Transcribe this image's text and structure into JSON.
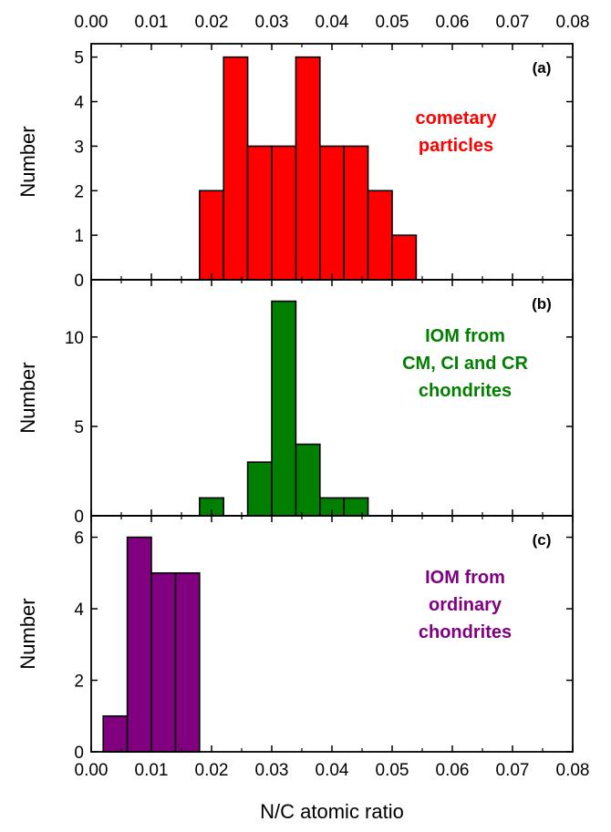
{
  "colors": {
    "axis": "#000000",
    "panel_a": "#ff0000",
    "panel_b": "#007f00",
    "panel_c": "#800080"
  },
  "chart_data": {
    "type": "bar",
    "xlabel": "N/C atomic ratio",
    "xlim": [
      0,
      0.08
    ],
    "bin_width": 0.004,
    "x_ticks": [
      "0.00",
      "0.01",
      "0.02",
      "0.03",
      "0.04",
      "0.05",
      "0.06",
      "0.07",
      "0.08"
    ],
    "panels": [
      {
        "id": "a",
        "letter": "(a)",
        "ylabel": "Number",
        "annotation": [
          "cometary",
          "particles"
        ],
        "color": "#ff0000",
        "ylim": [
          0,
          5.3
        ],
        "y_ticks": [
          0,
          1,
          2,
          3,
          4,
          5
        ],
        "bins": [
          {
            "x": 0.018,
            "value": 2
          },
          {
            "x": 0.022,
            "value": 5
          },
          {
            "x": 0.026,
            "value": 3
          },
          {
            "x": 0.03,
            "value": 3
          },
          {
            "x": 0.034,
            "value": 5
          },
          {
            "x": 0.038,
            "value": 3
          },
          {
            "x": 0.042,
            "value": 3
          },
          {
            "x": 0.046,
            "value": 2
          },
          {
            "x": 0.05,
            "value": 1
          }
        ]
      },
      {
        "id": "b",
        "letter": "(b)",
        "ylabel": "Number",
        "annotation": [
          "IOM from",
          "CM, CI and CR",
          "chondrites"
        ],
        "color": "#007f00",
        "ylim": [
          0,
          13.2
        ],
        "y_ticks": [
          0,
          5,
          10
        ],
        "bins": [
          {
            "x": 0.018,
            "value": 1
          },
          {
            "x": 0.026,
            "value": 3
          },
          {
            "x": 0.03,
            "value": 12
          },
          {
            "x": 0.034,
            "value": 4
          },
          {
            "x": 0.038,
            "value": 1
          },
          {
            "x": 0.042,
            "value": 1
          }
        ]
      },
      {
        "id": "c",
        "letter": "(c)",
        "ylabel": "Number",
        "annotation": [
          "IOM from",
          "ordinary",
          "chondrites"
        ],
        "color": "#800080",
        "ylim": [
          0,
          6.6
        ],
        "y_ticks": [
          0,
          2,
          4,
          6
        ],
        "bins": [
          {
            "x": 0.002,
            "value": 1
          },
          {
            "x": 0.006,
            "value": 6
          },
          {
            "x": 0.01,
            "value": 5
          },
          {
            "x": 0.014,
            "value": 5
          }
        ]
      }
    ]
  }
}
